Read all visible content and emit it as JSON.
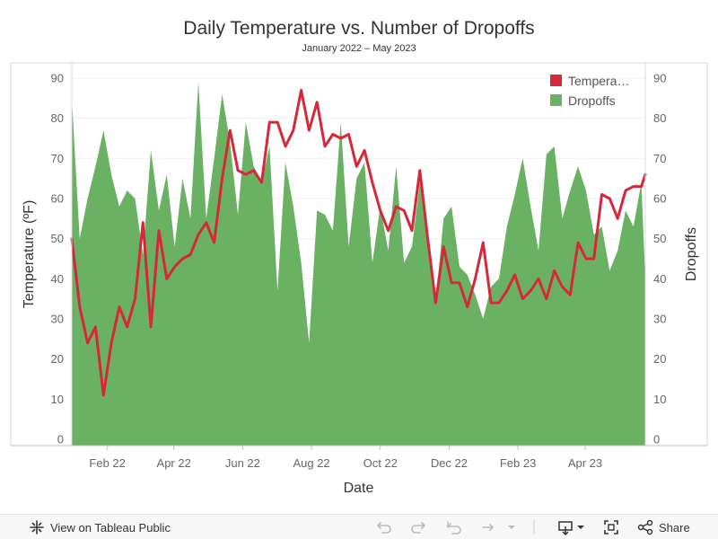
{
  "chart_data": {
    "type": "line+area",
    "title": "Daily Temperature vs. Number of Dropoffs",
    "subtitle": "January 2022 – May 2023",
    "xlabel": "Date",
    "ylabel_left": "Temperature (ºF)",
    "ylabel_right": "Dropoffs",
    "ylim": [
      0,
      90
    ],
    "y_ticks": [
      0,
      10,
      20,
      30,
      40,
      50,
      60,
      70,
      80,
      90
    ],
    "x_range": [
      1,
      73.5
    ],
    "x_unit": "week index starting Jan 2022",
    "x_ticks": [
      {
        "label": "Feb 22",
        "x": 5.5
      },
      {
        "label": "Apr 22",
        "x": 13.9
      },
      {
        "label": "Jun 22",
        "x": 22.6
      },
      {
        "label": "Aug 22",
        "x": 31.3
      },
      {
        "label": "Oct 22",
        "x": 40.0
      },
      {
        "label": "Dec 22",
        "x": 48.7
      },
      {
        "label": "Feb 23",
        "x": 57.4
      },
      {
        "label": "Apr 23",
        "x": 65.9
      }
    ],
    "legend": {
      "position": "top-right",
      "items": [
        {
          "label": "Tempera…",
          "color": "#d62839"
        },
        {
          "label": "Dropoffs",
          "color": "#6ab163"
        }
      ]
    },
    "series": [
      {
        "name": "Temperature",
        "kind": "line",
        "color": "#d62839",
        "points": [
          [
            1,
            50
          ],
          [
            2,
            33
          ],
          [
            3,
            24
          ],
          [
            4,
            28
          ],
          [
            5,
            11
          ],
          [
            6,
            24
          ],
          [
            7,
            33
          ],
          [
            8,
            28
          ],
          [
            9,
            35
          ],
          [
            10,
            54
          ],
          [
            11,
            28
          ],
          [
            12,
            52
          ],
          [
            13,
            40
          ],
          [
            14,
            43
          ],
          [
            15,
            45
          ],
          [
            16,
            46
          ],
          [
            17,
            51
          ],
          [
            18,
            54
          ],
          [
            19,
            49
          ],
          [
            20,
            65
          ],
          [
            21,
            77
          ],
          [
            22,
            67
          ],
          [
            23,
            66
          ],
          [
            24,
            67
          ],
          [
            25,
            64
          ],
          [
            26,
            79
          ],
          [
            27,
            79
          ],
          [
            28,
            73
          ],
          [
            29,
            77
          ],
          [
            30,
            87
          ],
          [
            31,
            77
          ],
          [
            32,
            84
          ],
          [
            33,
            73
          ],
          [
            34,
            76
          ],
          [
            35,
            75
          ],
          [
            36,
            76
          ],
          [
            37,
            68
          ],
          [
            38,
            72
          ],
          [
            39,
            64
          ],
          [
            40,
            57
          ],
          [
            41,
            52
          ],
          [
            42,
            58
          ],
          [
            43,
            57
          ],
          [
            44,
            52
          ],
          [
            45,
            67
          ],
          [
            46,
            50
          ],
          [
            47,
            34
          ],
          [
            48,
            48
          ],
          [
            49,
            39
          ],
          [
            50,
            39
          ],
          [
            51,
            33
          ],
          [
            52,
            40
          ],
          [
            53,
            49
          ],
          [
            54,
            34
          ],
          [
            55,
            34
          ],
          [
            56,
            37
          ],
          [
            57,
            41
          ],
          [
            58,
            35
          ],
          [
            59,
            37
          ],
          [
            60,
            40
          ],
          [
            61,
            35
          ],
          [
            62,
            42
          ],
          [
            63,
            38
          ],
          [
            64,
            36
          ],
          [
            65,
            49
          ],
          [
            66,
            45
          ],
          [
            67,
            45
          ],
          [
            68,
            61
          ],
          [
            69,
            60
          ],
          [
            70,
            55
          ],
          [
            71,
            62
          ],
          [
            72,
            63
          ],
          [
            73,
            63
          ],
          [
            73.5,
            66
          ]
        ]
      },
      {
        "name": "Dropoffs",
        "kind": "area",
        "color": "#6ab163",
        "points": [
          [
            1,
            85
          ],
          [
            2,
            50
          ],
          [
            3,
            60
          ],
          [
            4,
            68
          ],
          [
            5,
            77
          ],
          [
            6,
            66
          ],
          [
            7,
            58
          ],
          [
            8,
            62
          ],
          [
            9,
            60
          ],
          [
            10,
            46
          ],
          [
            11,
            72
          ],
          [
            12,
            57
          ],
          [
            13,
            66
          ],
          [
            14,
            48
          ],
          [
            15,
            65
          ],
          [
            16,
            55
          ],
          [
            17,
            89
          ],
          [
            18,
            55
          ],
          [
            19,
            70
          ],
          [
            20,
            86
          ],
          [
            21,
            74
          ],
          [
            22,
            56
          ],
          [
            23,
            79
          ],
          [
            24,
            68
          ],
          [
            25,
            64
          ],
          [
            26,
            73
          ],
          [
            27,
            37
          ],
          [
            28,
            69
          ],
          [
            29,
            58
          ],
          [
            30,
            44
          ],
          [
            31,
            24
          ],
          [
            32,
            57
          ],
          [
            33,
            56
          ],
          [
            34,
            52
          ],
          [
            35,
            79
          ],
          [
            36,
            48
          ],
          [
            37,
            65
          ],
          [
            38,
            69
          ],
          [
            39,
            44
          ],
          [
            40,
            58
          ],
          [
            41,
            47
          ],
          [
            42,
            68
          ],
          [
            43,
            44
          ],
          [
            44,
            48
          ],
          [
            45,
            64
          ],
          [
            46,
            48
          ],
          [
            47,
            34
          ],
          [
            48,
            55
          ],
          [
            49,
            58
          ],
          [
            50,
            43
          ],
          [
            51,
            41
          ],
          [
            52,
            36
          ],
          [
            53,
            30
          ],
          [
            54,
            38
          ],
          [
            55,
            40
          ],
          [
            56,
            53
          ],
          [
            57,
            61
          ],
          [
            58,
            70
          ],
          [
            59,
            58
          ],
          [
            60,
            47
          ],
          [
            61,
            71
          ],
          [
            62,
            73
          ],
          [
            63,
            55
          ],
          [
            64,
            62
          ],
          [
            65,
            68
          ],
          [
            66,
            62
          ],
          [
            67,
            51
          ],
          [
            68,
            53
          ],
          [
            69,
            42
          ],
          [
            70,
            47
          ],
          [
            71,
            57
          ],
          [
            72,
            53
          ],
          [
            73,
            64
          ],
          [
            73.5,
            40
          ]
        ]
      }
    ]
  },
  "toolbar": {
    "view_label": "View on Tableau Public",
    "share_label": "Share"
  },
  "colors": {
    "temperature": "#d62839",
    "dropoffs": "#6ab163",
    "axis_text": "#666666",
    "title_text": "#333333"
  }
}
